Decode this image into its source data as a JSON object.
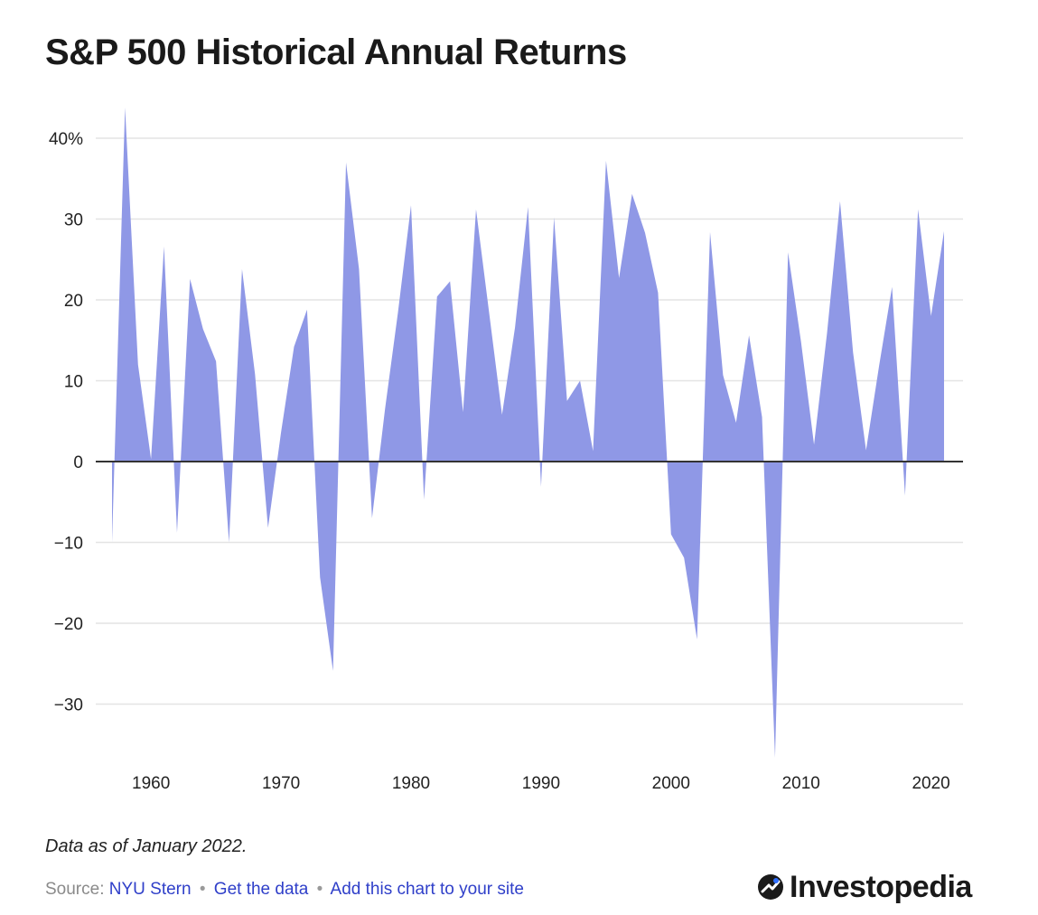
{
  "title": "S&P 500 Historical Annual Returns",
  "note": "Data as of January 2022.",
  "source": {
    "prefix": "Source:",
    "links": [
      "NYU Stern",
      "Get the data",
      "Add this chart to your site"
    ]
  },
  "brand": {
    "name": "Investopedia",
    "icon": "investopedia-logo-icon"
  },
  "colors": {
    "area": "#8f98e6",
    "baseline": "#333333",
    "grid": "#e4e4e4"
  },
  "chart_data": {
    "type": "area",
    "title": "S&P 500 Historical Annual Returns",
    "xlabel": "",
    "ylabel": "",
    "grid": true,
    "xlim": [
      1957,
      2021
    ],
    "ylim": [
      -37,
      44
    ],
    "x_ticks": [
      1960,
      1970,
      1980,
      1990,
      2000,
      2010,
      2020
    ],
    "x_tick_labels": [
      "1960",
      "1970",
      "1980",
      "1990",
      "2000",
      "2010",
      "2020"
    ],
    "y_ticks": [
      40,
      30,
      20,
      10,
      0,
      -10,
      -20,
      -30
    ],
    "y_tick_labels": [
      "40%",
      "30",
      "20",
      "10",
      "0",
      "−10",
      "−20",
      "−30"
    ],
    "x": [
      1957,
      1958,
      1959,
      1960,
      1961,
      1962,
      1963,
      1964,
      1965,
      1966,
      1967,
      1968,
      1969,
      1970,
      1971,
      1972,
      1973,
      1974,
      1975,
      1976,
      1977,
      1978,
      1979,
      1980,
      1981,
      1982,
      1983,
      1984,
      1985,
      1986,
      1987,
      1988,
      1989,
      1990,
      1991,
      1992,
      1993,
      1994,
      1995,
      1996,
      1997,
      1998,
      1999,
      2000,
      2001,
      2002,
      2003,
      2004,
      2005,
      2006,
      2007,
      2008,
      2009,
      2010,
      2011,
      2012,
      2013,
      2014,
      2015,
      2016,
      2017,
      2018,
      2019,
      2020,
      2021
    ],
    "y": [
      -10.0,
      43.8,
      12.0,
      0.3,
      26.6,
      -8.8,
      22.6,
      16.4,
      12.4,
      -10.0,
      23.8,
      10.8,
      -8.2,
      3.6,
      14.2,
      18.8,
      -14.3,
      -25.9,
      37.0,
      23.8,
      -7.0,
      6.5,
      18.5,
      31.7,
      -4.7,
      20.4,
      22.3,
      6.1,
      31.2,
      18.5,
      5.8,
      16.6,
      31.5,
      -3.1,
      30.2,
      7.5,
      10.0,
      1.3,
      37.2,
      22.7,
      33.1,
      28.3,
      20.9,
      -9.0,
      -11.9,
      -22.0,
      28.4,
      10.7,
      4.8,
      15.6,
      5.5,
      -36.6,
      25.9,
      14.8,
      2.1,
      15.9,
      32.2,
      13.5,
      1.4,
      11.8,
      21.6,
      -4.2,
      31.2,
      18.0,
      28.5
    ]
  }
}
